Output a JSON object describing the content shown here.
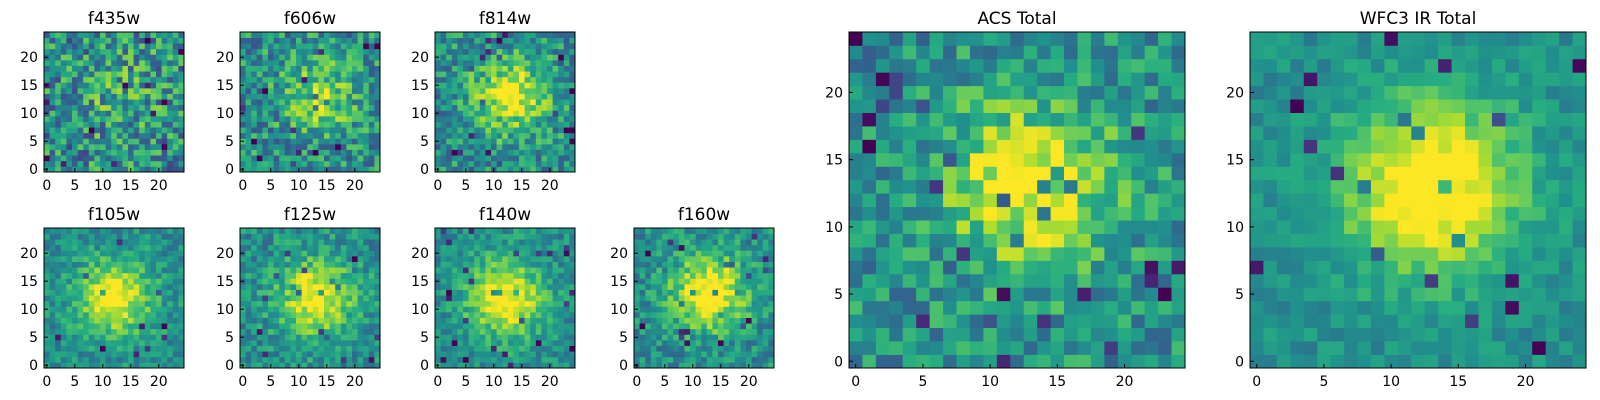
{
  "chart_data": [
    {
      "type": "heatmap",
      "title": "f435w",
      "grid": [
        25,
        25
      ],
      "xticks": [
        0,
        5,
        10,
        15,
        20
      ],
      "yticks": [
        0,
        5,
        10,
        15,
        20
      ],
      "colormap": "viridis",
      "peak": [
        13,
        13
      ],
      "peak_strength": 0.15,
      "noise": 0.6
    },
    {
      "type": "heatmap",
      "title": "f606w",
      "grid": [
        25,
        25
      ],
      "xticks": [
        0,
        5,
        10,
        15,
        20
      ],
      "yticks": [
        0,
        5,
        10,
        15,
        20
      ],
      "colormap": "viridis",
      "peak": [
        14,
        13
      ],
      "peak_strength": 0.35,
      "noise": 0.5
    },
    {
      "type": "heatmap",
      "title": "f814w",
      "grid": [
        25,
        25
      ],
      "xticks": [
        0,
        5,
        10,
        15,
        20
      ],
      "yticks": [
        0,
        5,
        10,
        15,
        20
      ],
      "colormap": "viridis",
      "peak": [
        13,
        13
      ],
      "peak_strength": 0.55,
      "noise": 0.45
    },
    {
      "type": "heatmap",
      "title": "f105w",
      "grid": [
        25,
        25
      ],
      "xticks": [
        0,
        5,
        10,
        15,
        20
      ],
      "yticks": [
        0,
        5,
        10,
        15,
        20
      ],
      "colormap": "viridis",
      "peak": [
        12,
        12
      ],
      "peak_strength": 0.6,
      "noise": 0.3
    },
    {
      "type": "heatmap",
      "title": "f125w",
      "grid": [
        25,
        25
      ],
      "xticks": [
        0,
        5,
        10,
        15,
        20
      ],
      "yticks": [
        0,
        5,
        10,
        15,
        20
      ],
      "colormap": "viridis",
      "peak": [
        13,
        12
      ],
      "peak_strength": 0.6,
      "noise": 0.35
    },
    {
      "type": "heatmap",
      "title": "f140w",
      "grid": [
        25,
        25
      ],
      "xticks": [
        0,
        5,
        10,
        15,
        20
      ],
      "yticks": [
        0,
        5,
        10,
        15,
        20
      ],
      "colormap": "viridis",
      "peak": [
        12,
        12
      ],
      "peak_strength": 0.65,
      "noise": 0.3
    },
    {
      "type": "heatmap",
      "title": "f160w",
      "grid": [
        25,
        25
      ],
      "xticks": [
        0,
        5,
        10,
        15,
        20
      ],
      "yticks": [
        0,
        5,
        10,
        15,
        20
      ],
      "colormap": "viridis",
      "peak": [
        13,
        13
      ],
      "peak_strength": 0.65,
      "noise": 0.35
    },
    {
      "type": "heatmap",
      "title": "ACS Total",
      "grid": [
        25,
        25
      ],
      "xticks": [
        0,
        5,
        10,
        15,
        20
      ],
      "yticks": [
        0,
        5,
        10,
        15,
        20
      ],
      "colormap": "viridis",
      "peak": [
        13,
        13
      ],
      "peak_strength": 0.55,
      "noise": 0.4
    },
    {
      "type": "heatmap",
      "title": "WFC3 IR Total",
      "grid": [
        25,
        25
      ],
      "xticks": [
        0,
        5,
        10,
        15,
        20
      ],
      "yticks": [
        0,
        5,
        10,
        15,
        20
      ],
      "colormap": "viridis",
      "peak": [
        13,
        13
      ],
      "peak_strength": 0.7,
      "noise": 0.2
    }
  ]
}
